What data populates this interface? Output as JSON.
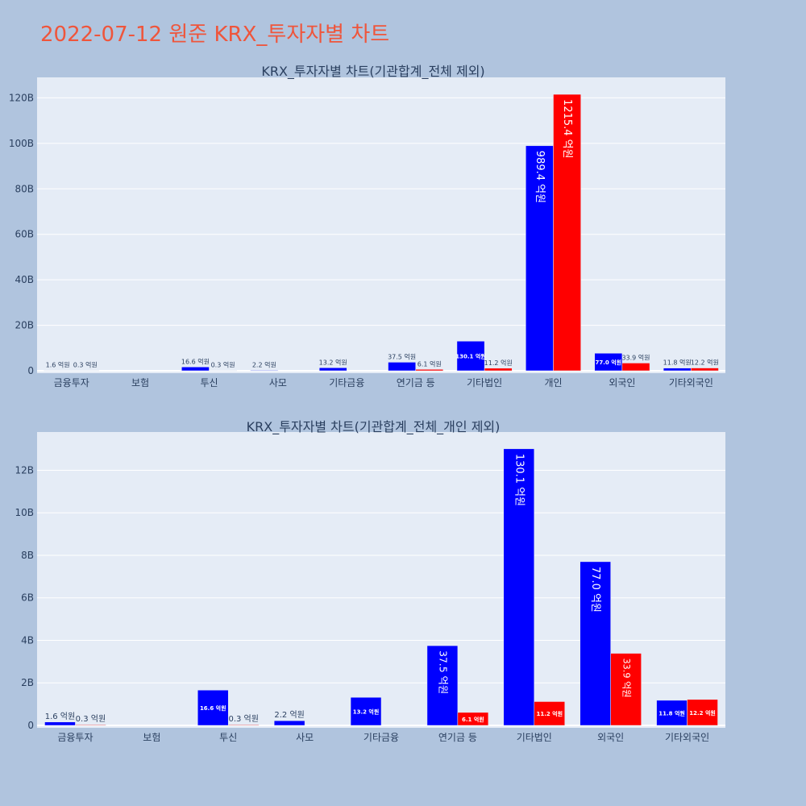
{
  "page_title": "2022-07-12 원준 KRX_투자자별 차트",
  "chart_data": [
    {
      "type": "bar",
      "title": "KRX_투자자별 차트(기관합계_전체 제외)",
      "categories": [
        "금융투자",
        "보험",
        "투신",
        "사모",
        "기타금융",
        "연기금 등",
        "기타법인",
        "개인",
        "외국인",
        "기타외국인"
      ],
      "series": [
        {
          "color": "#0000ff",
          "values": [
            0.16,
            null,
            1.66,
            0.22,
            1.32,
            3.75,
            13.01,
            98.94,
            7.7,
            1.18
          ],
          "labels": [
            "1.6 억원",
            "",
            "16.6 억원",
            "2.2 억원",
            "13.2 억원",
            "37.5 억원",
            "130.1 억원",
            "989.4 억원",
            "77.0 억원",
            "11.8 억원"
          ]
        },
        {
          "color": "#ff0000",
          "values": [
            0.03,
            null,
            0.03,
            null,
            null,
            0.61,
            1.12,
            121.54,
            3.39,
            1.22
          ],
          "labels": [
            "0.3 억원",
            "",
            "0.3 억원",
            "",
            "",
            "6.1 억원",
            "11.2 억원",
            "1215.4 억원",
            "33.9 억원",
            "12.2 억원"
          ]
        }
      ],
      "y_unit": "B",
      "ylim": [
        0,
        129
      ],
      "yticks": [
        0,
        20,
        40,
        60,
        80,
        100,
        120
      ],
      "grid": true
    },
    {
      "type": "bar",
      "title": "KRX_투자자별 차트(기관합계_전체_개인 제외)",
      "categories": [
        "금융투자",
        "보험",
        "투신",
        "사모",
        "기타금융",
        "연기금 등",
        "기타법인",
        "외국인",
        "기타외국인"
      ],
      "series": [
        {
          "color": "#0000ff",
          "values": [
            0.16,
            null,
            1.66,
            0.22,
            1.32,
            3.75,
            13.01,
            7.7,
            1.18
          ],
          "labels": [
            "1.6 억원",
            "",
            "16.6 억원",
            "2.2 억원",
            "13.2 억원",
            "37.5 억원",
            "130.1 억원",
            "77.0 억원",
            "11.8 억원"
          ]
        },
        {
          "color": "#ff0000",
          "values": [
            0.03,
            null,
            0.03,
            null,
            null,
            0.61,
            1.12,
            3.39,
            1.22
          ],
          "labels": [
            "0.3 억원",
            "",
            "0.3 억원",
            "",
            "",
            "6.1 억원",
            "11.2 억원",
            "33.9 억원",
            "12.2 억원"
          ]
        }
      ],
      "y_unit": "B",
      "ylim": [
        0,
        13.8
      ],
      "yticks": [
        0,
        2,
        4,
        6,
        8,
        10,
        12
      ],
      "grid": true
    }
  ]
}
